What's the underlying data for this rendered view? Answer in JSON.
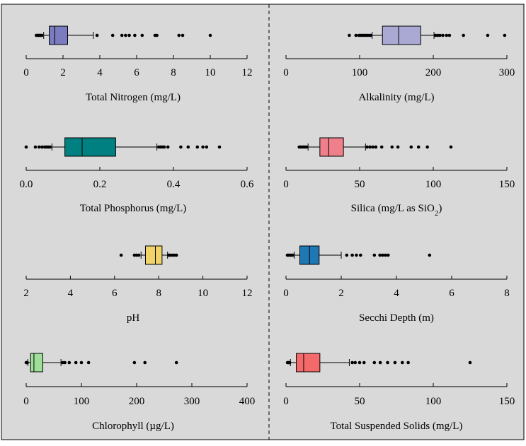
{
  "colors": {
    "background": "#d9d9d9",
    "frame": "#000000",
    "divider": "#000000"
  },
  "chart_data": [
    {
      "type": "boxplot",
      "xlabel": "Total Nitrogen (mg/L)",
      "xlim": [
        0,
        12
      ],
      "ticks": [
        0,
        2,
        4,
        6,
        8,
        10,
        12
      ],
      "tick_labels": [
        "0",
        "2",
        "4",
        "6",
        "8",
        "10",
        "12"
      ],
      "box": {
        "whisker_low": 0.95,
        "q1": 1.25,
        "median": 1.55,
        "q3": 2.25,
        "whisker_high": 3.65
      },
      "outliers": [
        0.55,
        0.6,
        0.65,
        0.7,
        0.75,
        0.8,
        0.85,
        3.85,
        4.7,
        5.2,
        5.4,
        5.6,
        5.9,
        6.3,
        7.0,
        7.1,
        8.3,
        8.5,
        10.0
      ],
      "color": "#7b7bbf"
    },
    {
      "type": "boxplot",
      "xlabel": "Alkalinity (mg/L)",
      "xlim": [
        0,
        300
      ],
      "ticks": [
        0,
        100,
        200,
        300
      ],
      "tick_labels": [
        "0",
        "100",
        "200",
        "300"
      ],
      "box": {
        "whisker_low": 117,
        "q1": 131,
        "median": 153,
        "q3": 183,
        "whisker_high": 201
      },
      "outliers": [
        86,
        95,
        99,
        101,
        103,
        105,
        107,
        109,
        111,
        113,
        115,
        203,
        206,
        209,
        213,
        218,
        222,
        241,
        274,
        297
      ],
      "color": "#a9a9d4"
    },
    {
      "type": "boxplot",
      "xlabel": "Total Phosphorus (mg/L)",
      "xlim": [
        0,
        0.6
      ],
      "ticks": [
        0.0,
        0.2,
        0.4,
        0.6
      ],
      "tick_labels": [
        "0.0",
        "0.2",
        "0.4",
        "0.6"
      ],
      "box": {
        "whisker_low": 0.07,
        "q1": 0.105,
        "median": 0.152,
        "q3": 0.243,
        "whisker_high": 0.355
      },
      "outliers": [
        0.0,
        0.025,
        0.035,
        0.043,
        0.05,
        0.055,
        0.06,
        0.065,
        0.36,
        0.365,
        0.37,
        0.375,
        0.385,
        0.42,
        0.44,
        0.465,
        0.48,
        0.49,
        0.525
      ],
      "color": "#008080"
    },
    {
      "type": "boxplot",
      "xlabel": "Silica (mg/L as SiO",
      "xlabel_sub": "2",
      "xlabel_suffix": ")",
      "xlim": [
        0,
        150
      ],
      "ticks": [
        0,
        50,
        100,
        150
      ],
      "tick_labels": [
        "0",
        "50",
        "100",
        "150"
      ],
      "box": {
        "whisker_low": 15,
        "q1": 23,
        "median": 29,
        "q3": 39,
        "whisker_high": 54
      },
      "outliers": [
        9,
        10,
        11,
        12,
        13,
        14,
        55,
        57,
        59,
        61,
        65,
        72,
        76,
        85,
        90,
        96,
        112
      ],
      "color": "#ef7f8b"
    },
    {
      "type": "boxplot",
      "xlabel": "pH",
      "xlim": [
        2,
        12
      ],
      "ticks": [
        2,
        4,
        6,
        8,
        10,
        12
      ],
      "tick_labels": [
        "2",
        "4",
        "6",
        "8",
        "10",
        "12"
      ],
      "box": {
        "whisker_low": 7.2,
        "q1": 7.4,
        "median": 7.85,
        "q3": 8.15,
        "whisker_high": 8.4
      },
      "outliers": [
        6.3,
        6.9,
        7.0,
        7.1,
        8.45,
        8.5,
        8.6,
        8.7,
        8.8
      ],
      "color": "#f1d36a"
    },
    {
      "type": "boxplot",
      "xlabel": "Secchi Depth (m)",
      "xlim": [
        0,
        8
      ],
      "ticks": [
        0,
        2,
        4,
        6,
        8
      ],
      "tick_labels": [
        "0",
        "2",
        "4",
        "6",
        "8"
      ],
      "box": {
        "whisker_low": 0.3,
        "q1": 0.5,
        "median": 0.85,
        "q3": 1.2,
        "whisker_high": 2.0
      },
      "outliers": [
        0.05,
        0.1,
        0.15,
        0.2,
        0.25,
        2.2,
        2.4,
        2.55,
        2.7,
        3.2,
        3.4,
        3.5,
        3.6,
        3.7,
        5.2
      ],
      "color": "#1f78b4"
    },
    {
      "type": "boxplot",
      "xlabel": "Chlorophyll (µg/L)",
      "xlim": [
        0,
        400
      ],
      "ticks": [
        0,
        100,
        200,
        300,
        400
      ],
      "tick_labels": [
        "0",
        "100",
        "200",
        "300",
        "400"
      ],
      "box": {
        "whisker_low": 3,
        "q1": 8,
        "median": 14,
        "q3": 30,
        "whisker_high": 63
      },
      "outliers": [
        0,
        1,
        2,
        66,
        70,
        78,
        90,
        100,
        113,
        196,
        215,
        272
      ],
      "color": "#9ee09a"
    },
    {
      "type": "boxplot",
      "xlabel": "Total Suspended Solids (mg/L)",
      "xlim": [
        0,
        150
      ],
      "ticks": [
        0,
        50,
        100,
        150
      ],
      "tick_labels": [
        "0",
        "50",
        "100",
        "150"
      ],
      "box": {
        "whisker_low": 3,
        "q1": 7,
        "median": 12,
        "q3": 23,
        "whisker_high": 43
      },
      "outliers": [
        1,
        1.5,
        2,
        2.5,
        45,
        47,
        50,
        53,
        60,
        64,
        69,
        74,
        79,
        83,
        125
      ],
      "color": "#f46a6a"
    }
  ]
}
